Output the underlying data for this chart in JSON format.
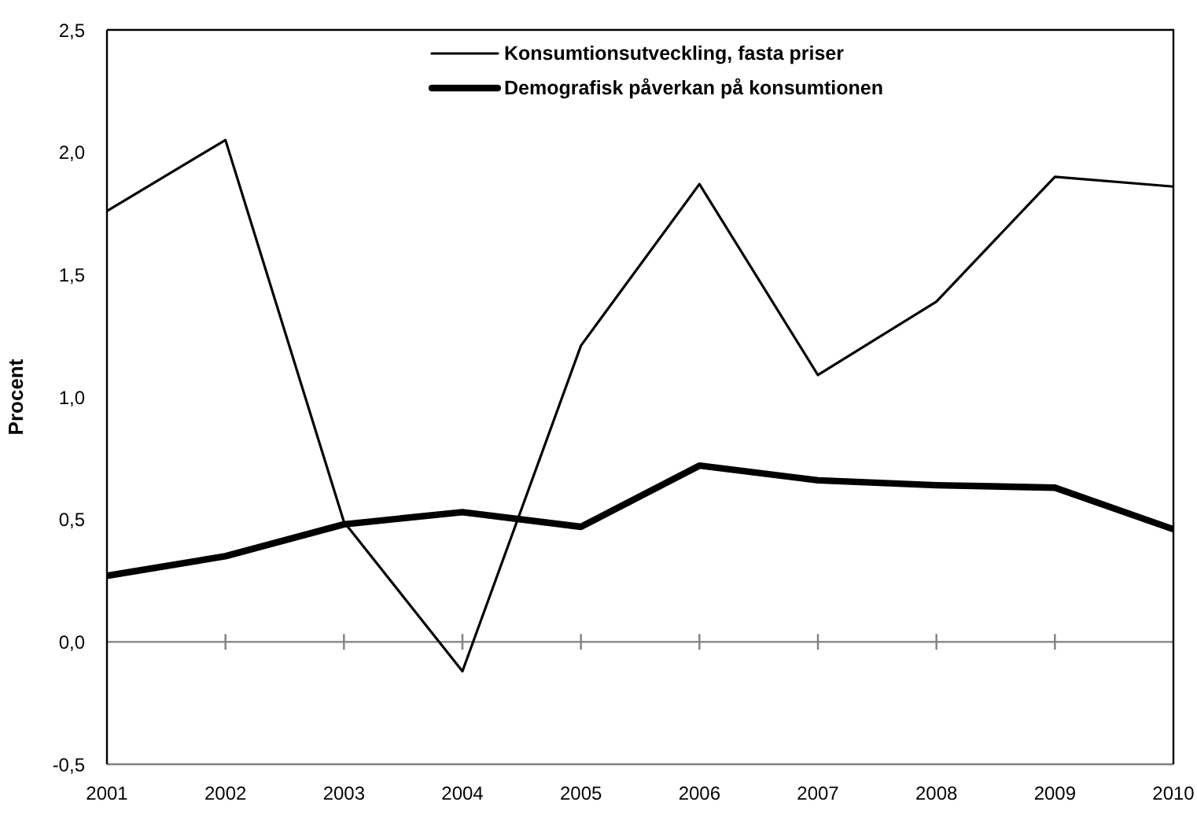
{
  "chart_data": {
    "type": "line",
    "ylabel": "Procent",
    "categories": [
      "2001",
      "2002",
      "2003",
      "2004",
      "2005",
      "2006",
      "2007",
      "2008",
      "2009",
      "2010"
    ],
    "series": [
      {
        "name": "Konsumtionsutveckling, fasta priser",
        "color": "#000000",
        "values": [
          1.76,
          2.05,
          0.49,
          -0.12,
          1.21,
          1.87,
          1.09,
          1.39,
          1.9,
          1.86
        ]
      },
      {
        "name": "Demografisk påverkan på konsumtionen",
        "color": "#000000",
        "values": [
          0.27,
          0.35,
          0.48,
          0.53,
          0.47,
          0.72,
          0.66,
          0.64,
          0.63,
          0.46
        ]
      }
    ],
    "ylim": [
      -0.5,
      2.5
    ],
    "yticks": [
      {
        "value": -0.5,
        "label": "-0,5"
      },
      {
        "value": 0,
        "label": "0,0"
      },
      {
        "value": 0.5,
        "label": "0,5"
      },
      {
        "value": 1,
        "label": "1,0"
      },
      {
        "value": 1.5,
        "label": "1,5"
      },
      {
        "value": 2,
        "label": "2,0"
      },
      {
        "value": 2.5,
        "label": "2,5"
      }
    ],
    "ref_lines": [
      {
        "axis": "y",
        "value": 0,
        "color": "#808080"
      }
    ],
    "grid": false,
    "legend": "top",
    "marker": "none",
    "line_style": "solid"
  }
}
